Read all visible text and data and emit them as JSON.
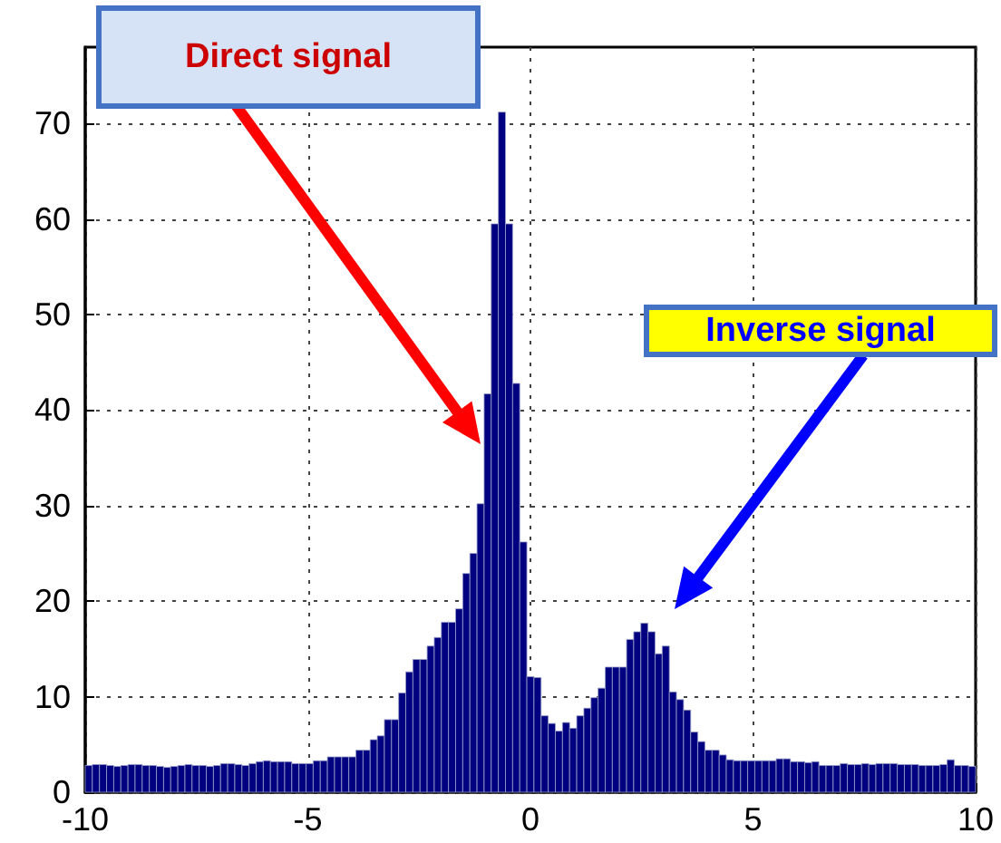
{
  "chart_data": {
    "type": "histogram",
    "bins": [
      -10,
      -9.84,
      -9.68,
      -9.52,
      -9.36,
      -9.2,
      -9.04,
      -8.88,
      -8.72,
      -8.56,
      -8.4,
      -8.24,
      -8.08,
      -7.92,
      -7.76,
      -7.6,
      -7.44,
      -7.28,
      -7.12,
      -6.96,
      -6.8,
      -6.64,
      -6.48,
      -6.32,
      -6.16,
      -6,
      -5.84,
      -5.68,
      -5.52,
      -5.36,
      -5.2,
      -5.04,
      -4.88,
      -4.72,
      -4.56,
      -4.4,
      -4.24,
      -4.08,
      -3.92,
      -3.76,
      -3.6,
      -3.44,
      -3.28,
      -3.12,
      -2.96,
      -2.8,
      -2.64,
      -2.48,
      -2.32,
      -2.16,
      -2,
      -1.84,
      -1.68,
      -1.52,
      -1.36,
      -1.2,
      -1.04,
      -0.88,
      -0.72,
      -0.56,
      -0.4,
      -0.24,
      -0.08,
      0.08,
      0.24,
      0.4,
      0.56,
      0.72,
      0.88,
      1.04,
      1.2,
      1.36,
      1.52,
      1.68,
      1.84,
      2,
      2.16,
      2.32,
      2.48,
      2.64,
      2.8,
      2.96,
      3.12,
      3.28,
      3.44,
      3.6,
      3.76,
      3.92,
      4.08,
      4.24,
      4.4,
      4.56,
      4.72,
      4.88,
      5.04,
      5.2,
      5.36,
      5.52,
      5.68,
      5.84,
      6,
      6.16,
      6.32,
      6.48,
      6.64,
      6.8,
      6.96,
      7.12,
      7.28,
      7.44,
      7.6,
      7.76,
      7.92,
      8.08,
      8.24,
      8.4,
      8.56,
      8.72,
      8.88,
      9.04,
      9.2,
      9.36,
      9.52,
      9.68,
      9.84,
      10
    ],
    "values": [
      2.8,
      2.9,
      2.9,
      2.8,
      2.7,
      2.8,
      2.9,
      2.9,
      2.8,
      2.8,
      2.7,
      2.6,
      2.7,
      2.8,
      2.9,
      2.8,
      2.8,
      2.7,
      2.8,
      3.0,
      3.0,
      2.9,
      2.8,
      3.0,
      3.2,
      3.3,
      3.2,
      3.2,
      3.2,
      3.0,
      3.0,
      3.0,
      3.3,
      3.3,
      3.7,
      3.7,
      3.7,
      3.7,
      4.4,
      4.4,
      5.5,
      5.9,
      7.6,
      7.6,
      10.4,
      12.6,
      13.9,
      13.9,
      15.3,
      16.2,
      17.8,
      17.8,
      19.2,
      22.9,
      25.0,
      30.2,
      41.7,
      59.5,
      71.2,
      59.5,
      42.8,
      26.2,
      12.1,
      12.0,
      8.0,
      7.2,
      6.4,
      7.3,
      6.7,
      8.0,
      8.8,
      9.9,
      10.9,
      13.1,
      13.1,
      13.1,
      16.0,
      16.8,
      17.7,
      16.8,
      14.5,
      15.3,
      10.5,
      9.7,
      8.6,
      6.3,
      5.3,
      4.4,
      4.4,
      3.9,
      3.4,
      3.3,
      3.3,
      3.3,
      3.3,
      3.3,
      3.3,
      3.5,
      3.5,
      3.2,
      3.2,
      3.1,
      3.2,
      2.8,
      2.8,
      2.8,
      3.0,
      2.9,
      2.9,
      3.0,
      2.9,
      3.0,
      3.0,
      3.0,
      2.9,
      2.9,
      2.9,
      2.8,
      2.8,
      2.8,
      2.9,
      3.4,
      2.8,
      2.8,
      2.7
    ],
    "color": "#000080",
    "xlim": [
      -10,
      10
    ],
    "xticks": [
      -10,
      -5,
      0,
      5,
      10
    ],
    "ylim": [
      0,
      78
    ],
    "yticks": [
      0,
      10,
      20,
      30,
      40,
      50,
      60,
      70
    ],
    "grid": true,
    "annotations": [
      "Direct signal",
      "Inverse signal"
    ]
  }
}
